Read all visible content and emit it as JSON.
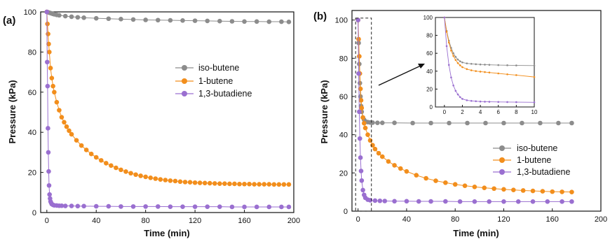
{
  "colors": {
    "iso_butene": "#8c8c8c",
    "butene_1": "#f28e1c",
    "butadiene": "#9a6fd0",
    "axis": "#111111"
  },
  "chart_data": [
    {
      "panel": "(a)",
      "type": "scatter",
      "xlabel": "Time (min)",
      "ylabel": "Pressure (kPa)",
      "xlim": [
        -5,
        200
      ],
      "ylim": [
        0,
        100
      ],
      "xticks": [
        0,
        40,
        80,
        120,
        160,
        200
      ],
      "yticks": [
        0,
        20,
        40,
        60,
        80,
        100
      ],
      "legend_position": "center-right",
      "series": [
        {
          "name": "iso-butene",
          "color": "#8c8c8c",
          "x": [
            0,
            1,
            2,
            3,
            4,
            5,
            6,
            8,
            10,
            15,
            20,
            25,
            30,
            40,
            50,
            60,
            70,
            80,
            90,
            100,
            110,
            120,
            130,
            140,
            150,
            160,
            170,
            180,
            190,
            196
          ],
          "y": [
            100,
            99.8,
            99.6,
            99.4,
            99.2,
            99.0,
            98.8,
            98.5,
            98.3,
            97.9,
            97.6,
            97.3,
            97.1,
            96.8,
            96.6,
            96.4,
            96.2,
            96.0,
            95.9,
            95.8,
            95.7,
            95.6,
            95.5,
            95.4,
            95.3,
            95.2,
            95.2,
            95.1,
            95.1,
            95.0
          ]
        },
        {
          "name": "1-butene",
          "color": "#f28e1c",
          "x": [
            0,
            0.5,
            1,
            1.5,
            2,
            3,
            4,
            5,
            6,
            8,
            10,
            12,
            14,
            16,
            18,
            20,
            24,
            28,
            32,
            36,
            40,
            44,
            48,
            52,
            56,
            60,
            64,
            68,
            72,
            76,
            80,
            84,
            88,
            92,
            96,
            100,
            104,
            108,
            112,
            116,
            120,
            124,
            128,
            132,
            136,
            140,
            144,
            148,
            152,
            156,
            160,
            164,
            168,
            172,
            176,
            180,
            184,
            188,
            192,
            196
          ],
          "y": [
            100,
            94.0,
            89.0,
            84.0,
            80.0,
            72.0,
            67.0,
            63.0,
            60.0,
            55.0,
            51.0,
            47.5,
            45.0,
            42.8,
            40.8,
            39.0,
            36.0,
            33.4,
            31.2,
            29.2,
            27.5,
            26.0,
            24.6,
            23.4,
            22.3,
            21.3,
            20.4,
            19.6,
            18.9,
            18.3,
            17.8,
            17.3,
            16.9,
            16.5,
            16.2,
            15.9,
            15.7,
            15.4,
            15.2,
            15.1,
            14.9,
            14.8,
            14.7,
            14.6,
            14.5,
            14.4,
            14.4,
            14.3,
            14.3,
            14.2,
            14.2,
            14.2,
            14.1,
            14.1,
            14.1,
            14.1,
            14.0,
            14.0,
            14.0,
            14.0
          ]
        },
        {
          "name": "1,3-butadiene",
          "color": "#9a6fd0",
          "x": [
            0,
            0.3,
            0.6,
            0.9,
            1.2,
            1.5,
            1.8,
            2.2,
            2.6,
            3,
            3.5,
            4,
            5,
            6,
            8,
            10,
            12,
            15,
            20,
            25,
            30,
            40,
            50,
            60,
            70,
            80,
            90,
            100,
            110,
            120,
            130,
            140,
            150,
            160,
            170,
            180,
            190,
            196
          ],
          "y": [
            100,
            75.0,
            63.0,
            42.0,
            30.0,
            20.5,
            13.5,
            9.0,
            7.0,
            5.5,
            4.8,
            4.2,
            3.8,
            3.6,
            3.5,
            3.4,
            3.4,
            3.3,
            3.3,
            3.2,
            3.2,
            3.1,
            3.1,
            3.0,
            3.0,
            3.0,
            3.0,
            2.9,
            2.9,
            2.9,
            2.9,
            2.9,
            2.8,
            2.8,
            2.8,
            2.8,
            2.8,
            2.8
          ]
        }
      ]
    },
    {
      "panel": "(b)",
      "type": "scatter",
      "xlabel": "Time (min)",
      "ylabel": "Pressure (kPa)",
      "xlim": [
        -5,
        200
      ],
      "ylim": [
        0,
        105
      ],
      "xticks": [
        0,
        40,
        80,
        120,
        160,
        200
      ],
      "yticks": [
        0,
        20,
        40,
        60,
        80,
        100
      ],
      "legend_position": "center-right",
      "highlight_box": {
        "x": [
          -2,
          11
        ],
        "y": [
          0,
          101
        ]
      },
      "series": [
        {
          "name": "iso-butene",
          "color": "#8c8c8c",
          "x": [
            0,
            0.5,
            1,
            1.5,
            2,
            2.5,
            3,
            4,
            5,
            6,
            8,
            10,
            12,
            16,
            20,
            30,
            45,
            60,
            75,
            90,
            105,
            120,
            135,
            150,
            165,
            176
          ],
          "y": [
            100,
            88.0,
            77.0,
            67.0,
            60.0,
            55.0,
            52.0,
            49.0,
            47.8,
            47.0,
            46.6,
            46.4,
            46.3,
            46.2,
            46.2,
            46.2,
            46.1,
            46.1,
            46.1,
            46.1,
            46.1,
            46.1,
            46.1,
            46.1,
            46.1,
            46.1
          ]
        },
        {
          "name": "1-butene",
          "color": "#f28e1c",
          "x": [
            0,
            0.5,
            1,
            1.5,
            2,
            2.5,
            3,
            4,
            5,
            6,
            8,
            10,
            12,
            14,
            17,
            20,
            25,
            30,
            35,
            40,
            48,
            56,
            64,
            72,
            80,
            88,
            96,
            104,
            112,
            120,
            128,
            136,
            144,
            152,
            160,
            168,
            176
          ],
          "y": [
            100,
            90.0,
            81.0,
            72.0,
            64.0,
            58.0,
            54.0,
            49.0,
            46.0,
            43.5,
            40.0,
            37.0,
            34.5,
            32.5,
            30.3,
            28.5,
            26.0,
            24.0,
            22.3,
            20.8,
            18.8,
            17.2,
            15.9,
            14.9,
            14.0,
            13.3,
            12.7,
            12.2,
            11.8,
            11.4,
            11.1,
            10.8,
            10.6,
            10.4,
            10.2,
            10.1,
            10.0
          ]
        },
        {
          "name": "1,3-butadiene",
          "color": "#9a6fd0",
          "x": [
            0,
            0.5,
            1,
            1.5,
            2,
            2.5,
            3,
            4,
            5,
            6,
            8,
            10,
            14,
            18,
            22,
            30,
            40,
            50,
            60,
            72,
            84,
            96,
            108,
            120,
            132,
            144,
            156,
            168,
            176
          ],
          "y": [
            100,
            72.0,
            52.0,
            38.0,
            28.0,
            21.0,
            16.0,
            11.0,
            8.5,
            7.0,
            6.0,
            5.7,
            5.5,
            5.4,
            5.3,
            5.2,
            5.2,
            5.1,
            5.1,
            5.1,
            5.0,
            5.0,
            5.0,
            5.0,
            5.0,
            5.0,
            5.0,
            5.0,
            5.0
          ]
        }
      ]
    },
    {
      "panel": "inset",
      "type": "line",
      "xlim": [
        -1,
        10
      ],
      "ylim": [
        0,
        100
      ],
      "xticks": [
        0,
        2,
        4,
        6,
        8,
        10
      ],
      "yticks": [
        0,
        20,
        40,
        60,
        80,
        100
      ],
      "series": [
        {
          "name": "iso-butene",
          "color": "#8c8c8c",
          "x": [
            0,
            0.25,
            0.5,
            0.75,
            1,
            1.25,
            1.5,
            1.75,
            2,
            2.5,
            3,
            3.5,
            4,
            4.5,
            5,
            6,
            7,
            8,
            10
          ],
          "y": [
            100,
            85.0,
            74.0,
            66.0,
            60.0,
            56.0,
            53.0,
            51.0,
            49.8,
            48.7,
            48.2,
            47.8,
            47.5,
            47.3,
            47.1,
            46.8,
            46.6,
            46.4,
            46.2
          ]
        },
        {
          "name": "1-butene",
          "color": "#f28e1c",
          "x": [
            0,
            0.25,
            0.5,
            0.75,
            1,
            1.25,
            1.5,
            1.75,
            2,
            2.5,
            3,
            3.5,
            4,
            4.5,
            5,
            6,
            7,
            8,
            10
          ],
          "y": [
            100,
            84.0,
            72.0,
            63.0,
            57.0,
            52.5,
            49.0,
            46.5,
            44.5,
            42.3,
            41.0,
            40.1,
            39.5,
            39.0,
            38.5,
            37.5,
            36.5,
            35.6,
            33.5
          ]
        },
        {
          "name": "1,3-butadiene",
          "color": "#9a6fd0",
          "x": [
            0,
            0.25,
            0.5,
            0.75,
            1,
            1.25,
            1.5,
            1.75,
            2,
            2.5,
            3,
            3.5,
            4,
            4.5,
            5,
            6,
            7,
            8,
            10
          ],
          "y": [
            100,
            68.0,
            47.0,
            33.0,
            24.0,
            18.0,
            14.0,
            11.0,
            9.0,
            7.5,
            6.8,
            6.4,
            6.1,
            5.9,
            5.8,
            5.6,
            5.5,
            5.4,
            5.2
          ]
        }
      ]
    }
  ]
}
